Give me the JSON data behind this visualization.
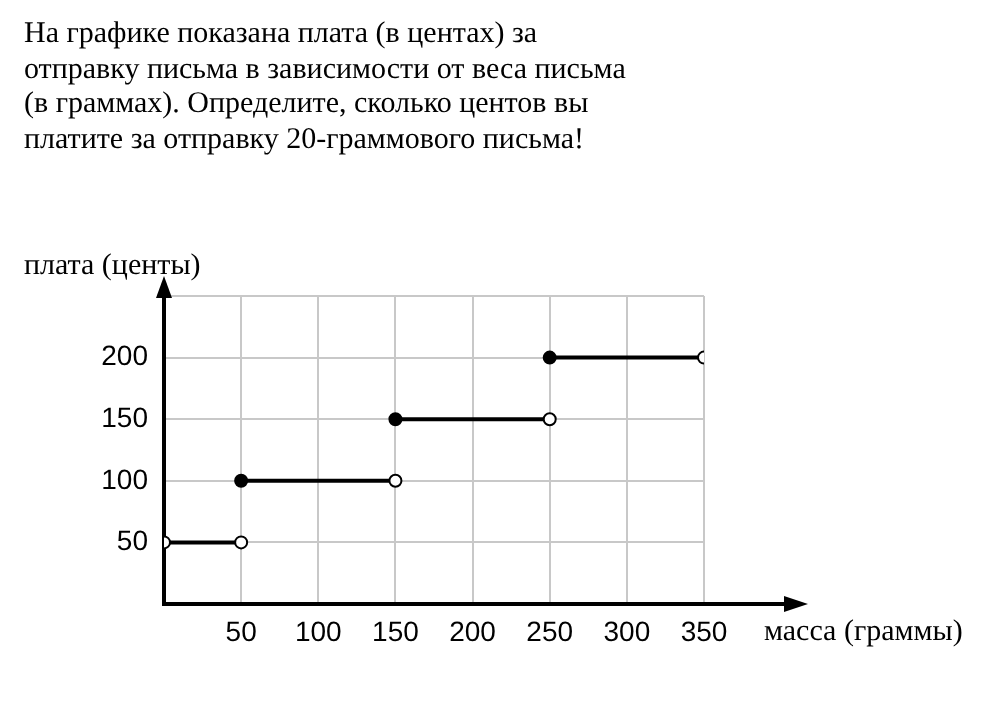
{
  "chart_data": {
    "type": "line",
    "title": "На графике показана плата (в центах) за отправку письма в зависимости от веса письма (в граммах). Определите, сколько центов вы платите за отправку 20-граммового письма!",
    "xlabel": "масса (граммы)",
    "ylabel": "плата (центы)",
    "series": [
      {
        "color": "#000000",
        "x": [
          0,
          50
        ],
        "values": [
          50,
          50
        ]
      },
      {
        "color": "#000000",
        "x": [
          50,
          150
        ],
        "values": [
          100,
          100
        ]
      },
      {
        "color": "#000000",
        "x": [
          150,
          250
        ],
        "values": [
          150,
          150
        ]
      },
      {
        "color": "#000000",
        "x": [
          250,
          350
        ],
        "values": [
          200,
          200
        ]
      }
    ],
    "xlim": [
      0,
      350
    ],
    "ylim": [
      0,
      250
    ],
    "xticks": [
      50,
      100,
      150,
      200,
      250,
      300,
      350
    ],
    "yticks": [
      50,
      100,
      150,
      200,
      {
        "value": 250,
        "label": null
      }
    ],
    "grid": true,
    "legend": false,
    "marker": "circle",
    "line_style": "solid"
  }
}
